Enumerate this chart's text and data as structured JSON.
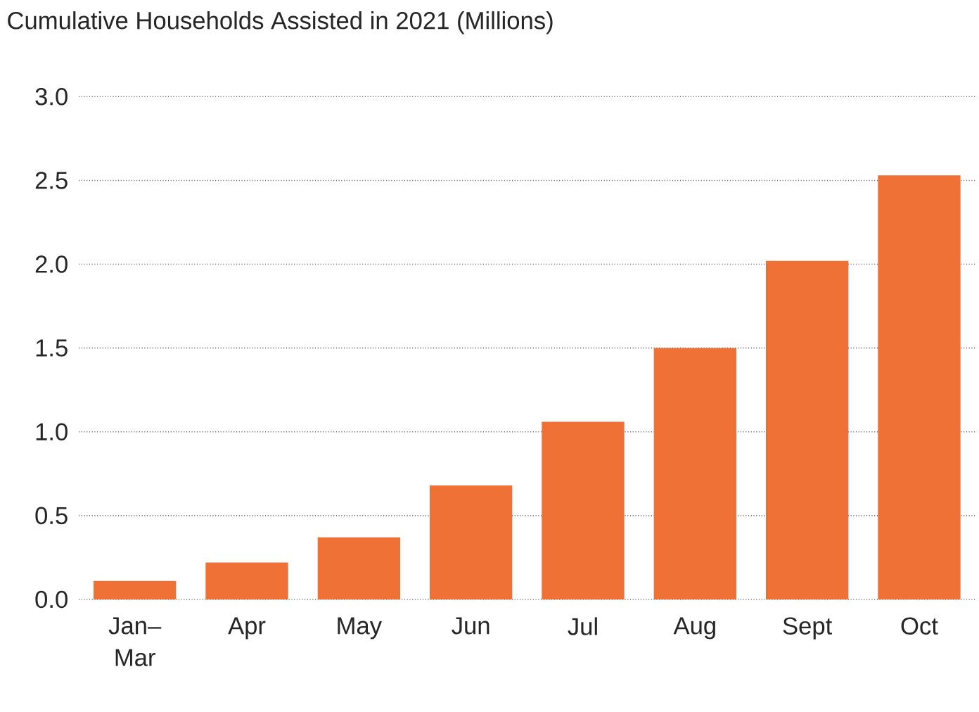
{
  "chart_data": {
    "type": "bar",
    "title": "Cumulative Households Assisted in 2021 (Millions)",
    "categories": [
      "Jan–Mar",
      "Apr",
      "May",
      "Jun",
      "Jul",
      "Aug",
      "Sept",
      "Oct"
    ],
    "values": [
      0.11,
      0.22,
      0.37,
      0.68,
      1.06,
      1.5,
      2.02,
      2.53
    ],
    "color": "#f07136",
    "ylim": [
      0,
      3.0
    ],
    "yticks": [
      {
        "value": 0,
        "label": "0.0"
      },
      {
        "value": 0.5,
        "label": "0.5"
      },
      {
        "value": 1,
        "label": "1.0"
      },
      {
        "value": 1.5,
        "label": "1.5"
      },
      {
        "value": 2,
        "label": "2.0"
      },
      {
        "value": 2.5,
        "label": "2.5"
      },
      {
        "value": 3,
        "label": "3.0"
      }
    ],
    "grid": "y"
  }
}
